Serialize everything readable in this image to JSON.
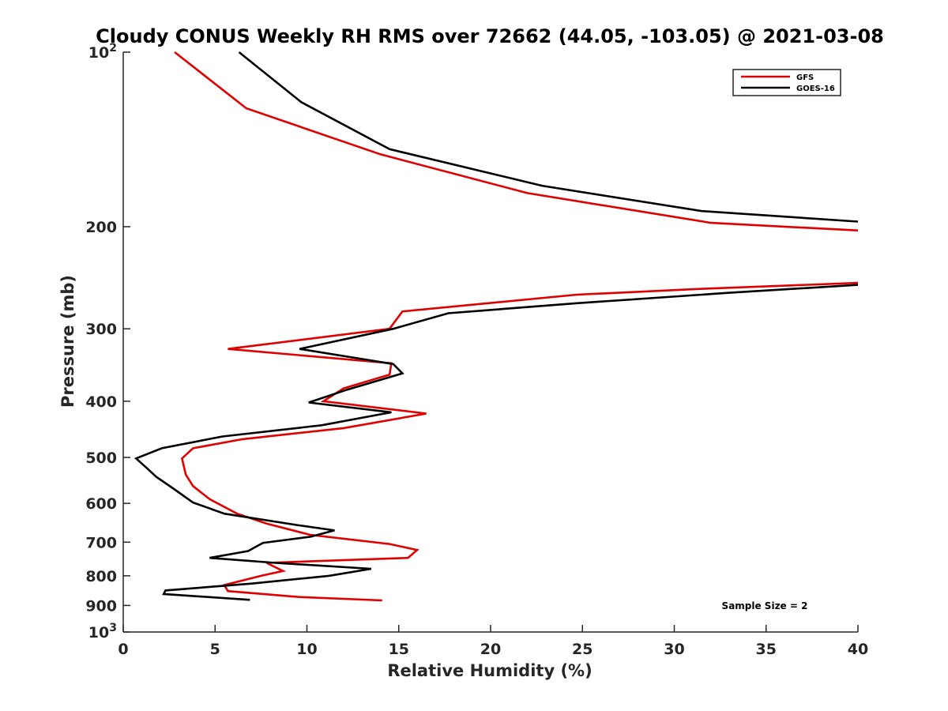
{
  "chart_data": {
    "type": "line",
    "title": "Cloudy CONUS Weekly RH RMS over 72662 (44.05, -103.05) @ 2021-03-08",
    "xlabel": "Relative Humidity (%)",
    "ylabel": "Pressure (mb)",
    "xlim": [
      0,
      40
    ],
    "ylim": [
      100,
      1000
    ],
    "y_scale": "log",
    "y_reversed": true,
    "grid": false,
    "legend_position": "top-right",
    "x_ticks": [
      0,
      5,
      10,
      15,
      20,
      25,
      30,
      35,
      40
    ],
    "y_ticks": [
      {
        "value": 100,
        "label": "10",
        "exp": "2"
      },
      {
        "value": 200,
        "label": "200"
      },
      {
        "value": 300,
        "label": "300"
      },
      {
        "value": 400,
        "label": "400"
      },
      {
        "value": 500,
        "label": "500"
      },
      {
        "value": 600,
        "label": "600"
      },
      {
        "value": 700,
        "label": "700"
      },
      {
        "value": 800,
        "label": "800"
      },
      {
        "value": 900,
        "label": "900"
      },
      {
        "value": 1000,
        "label": "10",
        "exp": "3"
      }
    ],
    "series": [
      {
        "name": "GFS",
        "color": "#e00000",
        "points": [
          [
            2.8,
            100
          ],
          [
            6.7,
            125
          ],
          [
            14.0,
            150
          ],
          [
            22.0,
            175
          ],
          [
            32.0,
            197
          ],
          [
            40.0,
            203
          ],
          [
            null,
            null
          ],
          [
            40.0,
            250
          ],
          [
            31.5,
            256
          ],
          [
            24.7,
            262
          ],
          [
            15.2,
            280
          ],
          [
            14.5,
            300
          ],
          [
            5.7,
            325
          ],
          [
            14.6,
            344
          ],
          [
            14.5,
            360
          ],
          [
            12.0,
            380
          ],
          [
            10.9,
            400
          ],
          [
            16.5,
            420
          ],
          [
            12.0,
            445
          ],
          [
            6.5,
            465
          ],
          [
            3.8,
            482
          ],
          [
            3.2,
            502
          ],
          [
            3.4,
            535
          ],
          [
            3.8,
            560
          ],
          [
            4.7,
            590
          ],
          [
            6.2,
            625
          ],
          [
            7.8,
            650
          ],
          [
            10.2,
            680
          ],
          [
            14.5,
            705
          ],
          [
            16.0,
            722
          ],
          [
            15.5,
            745
          ],
          [
            7.8,
            760
          ],
          [
            8.7,
            785
          ],
          [
            7.5,
            800
          ],
          [
            5.5,
            830
          ],
          [
            5.7,
            850
          ],
          [
            9.5,
            870
          ],
          [
            14.1,
            882
          ]
        ]
      },
      {
        "name": "GOES-16",
        "color": "#000000",
        "points": [
          [
            6.3,
            100
          ],
          [
            9.7,
            122
          ],
          [
            14.5,
            147
          ],
          [
            22.8,
            170
          ],
          [
            31.5,
            188
          ],
          [
            40.0,
            196
          ],
          [
            null,
            null
          ],
          [
            40.0,
            252
          ],
          [
            33.0,
            260
          ],
          [
            24.7,
            271
          ],
          [
            17.7,
            282
          ],
          [
            14.7,
            300
          ],
          [
            9.6,
            325
          ],
          [
            14.7,
            345
          ],
          [
            15.2,
            358
          ],
          [
            12.2,
            382
          ],
          [
            10.1,
            402
          ],
          [
            14.6,
            418
          ],
          [
            10.8,
            440
          ],
          [
            5.4,
            460
          ],
          [
            2.1,
            482
          ],
          [
            0.7,
            502
          ],
          [
            1.3,
            522
          ],
          [
            1.8,
            540
          ],
          [
            2.7,
            565
          ],
          [
            3.8,
            598
          ],
          [
            5.5,
            625
          ],
          [
            9.6,
            655
          ],
          [
            11.5,
            668
          ],
          [
            10.2,
            685
          ],
          [
            7.6,
            702
          ],
          [
            6.8,
            725
          ],
          [
            4.7,
            745
          ],
          [
            8.3,
            760
          ],
          [
            13.5,
            778
          ],
          [
            11.2,
            800
          ],
          [
            7.0,
            825
          ],
          [
            2.3,
            848
          ],
          [
            2.2,
            860
          ],
          [
            6.9,
            880
          ]
        ]
      }
    ],
    "annotation": "Sample Size = 2"
  }
}
